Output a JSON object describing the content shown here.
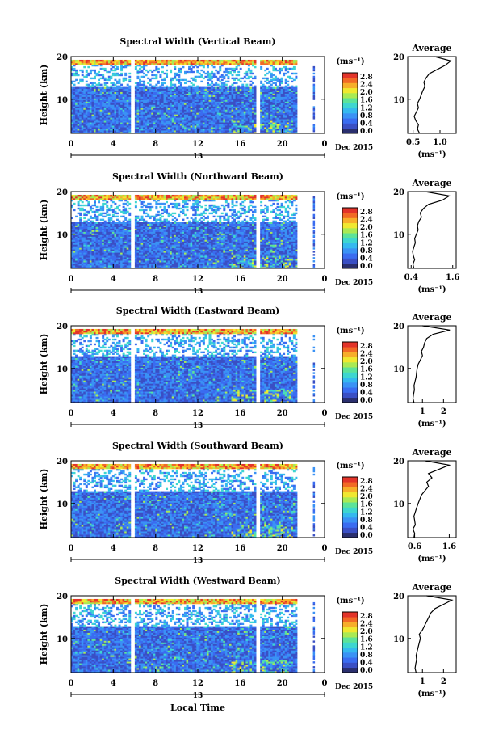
{
  "x_axis_title": "Local Time",
  "colorbar_unit": "(ms⁻¹)",
  "average_unit": "(ms⁻¹)",
  "date_label": "Dec 2015",
  "colors": {
    "scale": [
      "#2a2f6e",
      "#3a4fc4",
      "#3a6cf0",
      "#3a92f5",
      "#35b9ef",
      "#3ed6d0",
      "#5ce39a",
      "#a9ea55",
      "#f0e830",
      "#f7ae2a",
      "#f26a26",
      "#e3342a"
    ],
    "axis": "#000000"
  },
  "chart_data": [
    {
      "type": "heatmap",
      "title": "Spectral Width (Vertical Beam)",
      "ylabel": "Height (km)",
      "xlim": [
        0,
        24
      ],
      "ylim": [
        2,
        20
      ],
      "x_ticks": [
        "0",
        "4",
        "8",
        "12",
        "16",
        "20",
        "0"
      ],
      "y_ticks": [
        "10",
        "20"
      ],
      "day_marker": "13",
      "colorbar_ticks": [
        "0.0",
        "0.4",
        "0.8",
        "1.2",
        "1.6",
        "2.0",
        "2.4",
        "2.8"
      ],
      "average": {
        "title": "Average",
        "x_ticks": [
          "0.5",
          "1.0"
        ],
        "xlim": [
          0.4,
          1.3
        ],
        "height": [
          2,
          3,
          4,
          5,
          6,
          7,
          8,
          9,
          10,
          11,
          12,
          13,
          14,
          15,
          16,
          17,
          18,
          19,
          20
        ],
        "values": [
          0.62,
          0.58,
          0.6,
          0.55,
          0.52,
          0.56,
          0.6,
          0.58,
          0.62,
          0.65,
          0.68,
          0.72,
          0.7,
          0.74,
          0.8,
          0.95,
          1.1,
          1.2,
          0.9
        ]
      }
    },
    {
      "type": "heatmap",
      "title": "Spectral Width (Northward Beam)",
      "ylabel": "Height (km)",
      "xlim": [
        0,
        24
      ],
      "ylim": [
        2,
        20
      ],
      "x_ticks": [
        "0",
        "4",
        "8",
        "12",
        "16",
        "20",
        "0"
      ],
      "y_ticks": [
        "10",
        "20"
      ],
      "day_marker": "13",
      "colorbar_ticks": [
        "0.0",
        "0.4",
        "0.8",
        "1.2",
        "1.6",
        "2.0",
        "2.4",
        "2.8"
      ],
      "average": {
        "title": "Average",
        "x_ticks": [
          "0.4",
          "1.6"
        ],
        "xlim": [
          0.3,
          1.7
        ],
        "height": [
          2,
          3,
          4,
          5,
          6,
          7,
          8,
          9,
          10,
          11,
          12,
          13,
          14,
          15,
          16,
          17,
          18,
          19,
          20
        ],
        "values": [
          0.48,
          0.45,
          0.5,
          0.46,
          0.44,
          0.48,
          0.52,
          0.5,
          0.55,
          0.6,
          0.58,
          0.62,
          0.7,
          0.66,
          0.75,
          0.9,
          1.3,
          1.5,
          0.8
        ]
      }
    },
    {
      "type": "heatmap",
      "title": "Spectral Width (Eastward Beam)",
      "ylabel": "Height (km)",
      "xlim": [
        0,
        24
      ],
      "ylim": [
        2,
        20
      ],
      "x_ticks": [
        "0",
        "4",
        "8",
        "12",
        "16",
        "20",
        "0"
      ],
      "y_ticks": [
        "10",
        "20"
      ],
      "day_marker": "13",
      "colorbar_ticks": [
        "0.0",
        "0.4",
        "0.8",
        "1.2",
        "1.6",
        "2.0",
        "2.4",
        "2.8"
      ],
      "average": {
        "title": "Average",
        "x_ticks": [
          "1",
          "2"
        ],
        "xlim": [
          0.3,
          2.6
        ],
        "height": [
          2,
          3,
          4,
          5,
          6,
          7,
          8,
          9,
          10,
          11,
          12,
          13,
          14,
          15,
          16,
          17,
          18,
          19,
          20
        ],
        "values": [
          0.6,
          0.55,
          0.58,
          0.62,
          0.6,
          0.65,
          0.7,
          0.72,
          0.75,
          0.8,
          0.9,
          1.0,
          0.95,
          1.05,
          1.1,
          1.2,
          1.5,
          2.3,
          1.0
        ]
      }
    },
    {
      "type": "heatmap",
      "title": "Spectral Width (Southward Beam)",
      "ylabel": "Height (km)",
      "xlim": [
        0,
        24
      ],
      "ylim": [
        2,
        20
      ],
      "x_ticks": [
        "0",
        "4",
        "8",
        "12",
        "16",
        "20",
        "0"
      ],
      "y_ticks": [
        "10",
        "20"
      ],
      "day_marker": "13",
      "colorbar_ticks": [
        "0.0",
        "0.4",
        "0.8",
        "1.2",
        "1.6",
        "2.0",
        "2.4",
        "2.8"
      ],
      "average": {
        "title": "Average",
        "x_ticks": [
          "0.6",
          "1.6"
        ],
        "xlim": [
          0.4,
          1.8
        ],
        "height": [
          2,
          3,
          4,
          5,
          6,
          7,
          8,
          9,
          10,
          11,
          12,
          13,
          14,
          15,
          16,
          17,
          18,
          19,
          20
        ],
        "values": [
          0.58,
          0.6,
          0.55,
          0.62,
          0.6,
          0.58,
          0.62,
          0.66,
          0.7,
          0.75,
          0.8,
          0.9,
          1.0,
          0.95,
          1.1,
          1.0,
          1.3,
          1.6,
          0.9
        ]
      }
    },
    {
      "type": "heatmap",
      "title": "Spectral Width (Westward Beam)",
      "ylabel": "Height (km)",
      "xlim": [
        0,
        24
      ],
      "ylim": [
        2,
        20
      ],
      "x_ticks": [
        "0",
        "4",
        "8",
        "12",
        "16",
        "20",
        "0"
      ],
      "y_ticks": [
        "10",
        "20"
      ],
      "day_marker": "13",
      "colorbar_ticks": [
        "0.0",
        "0.4",
        "0.8",
        "1.2",
        "1.6",
        "2.0",
        "2.4",
        "2.8"
      ],
      "average": {
        "title": "Average",
        "x_ticks": [
          "1",
          "2"
        ],
        "xlim": [
          0.3,
          2.6
        ],
        "height": [
          2,
          3,
          4,
          5,
          6,
          7,
          8,
          9,
          10,
          11,
          12,
          13,
          14,
          15,
          16,
          17,
          18,
          19,
          20
        ],
        "values": [
          0.7,
          0.65,
          0.68,
          0.72,
          0.7,
          0.75,
          0.8,
          0.85,
          0.9,
          0.85,
          1.0,
          1.1,
          1.2,
          1.3,
          1.4,
          1.6,
          2.0,
          2.4,
          1.2
        ]
      }
    }
  ]
}
